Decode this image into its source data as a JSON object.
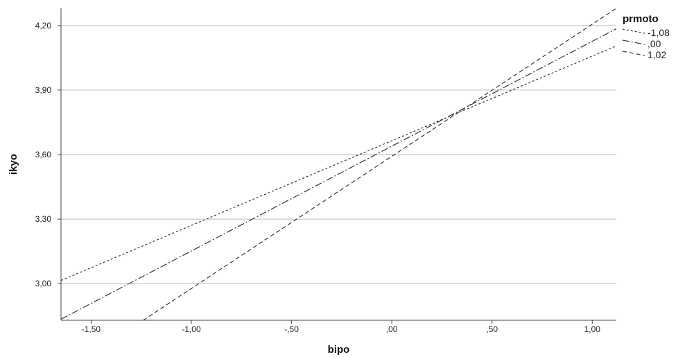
{
  "chart_data": {
    "type": "line",
    "xlabel": "bipo",
    "ylabel": "ikyo",
    "xlim": [
      -1.65,
      1.12
    ],
    "ylim": [
      2.83,
      4.28
    ],
    "x_ticks": [
      "-1,50",
      "-1,00",
      "-,50",
      ",00",
      ",50",
      "1,00"
    ],
    "x_tick_values": [
      -1.5,
      -1.0,
      -0.5,
      0.0,
      0.5,
      1.0
    ],
    "y_ticks": [
      "3,00",
      "3,30",
      "3,60",
      "3,90",
      "4,20"
    ],
    "y_tick_values": [
      3.0,
      3.3,
      3.6,
      3.9,
      4.2
    ],
    "grid": "horizontal",
    "legend": {
      "title": "prmoto",
      "placement": "top-right",
      "entries": [
        "-1,08",
        ",00",
        "1,02"
      ]
    },
    "series": [
      {
        "name": "-1,08",
        "dash": "3,3",
        "x": [
          -1.65,
          1.12
        ],
        "y": [
          3.015,
          4.105
        ]
      },
      {
        "name": ",00",
        "dash": "10,3,2,3",
        "x": [
          -1.65,
          1.12
        ],
        "y": [
          2.835,
          4.185
        ]
      },
      {
        "name": "1,02",
        "dash": "6,4",
        "x": [
          -1.24,
          1.12
        ],
        "y": [
          2.83,
          4.28
        ]
      }
    ]
  }
}
